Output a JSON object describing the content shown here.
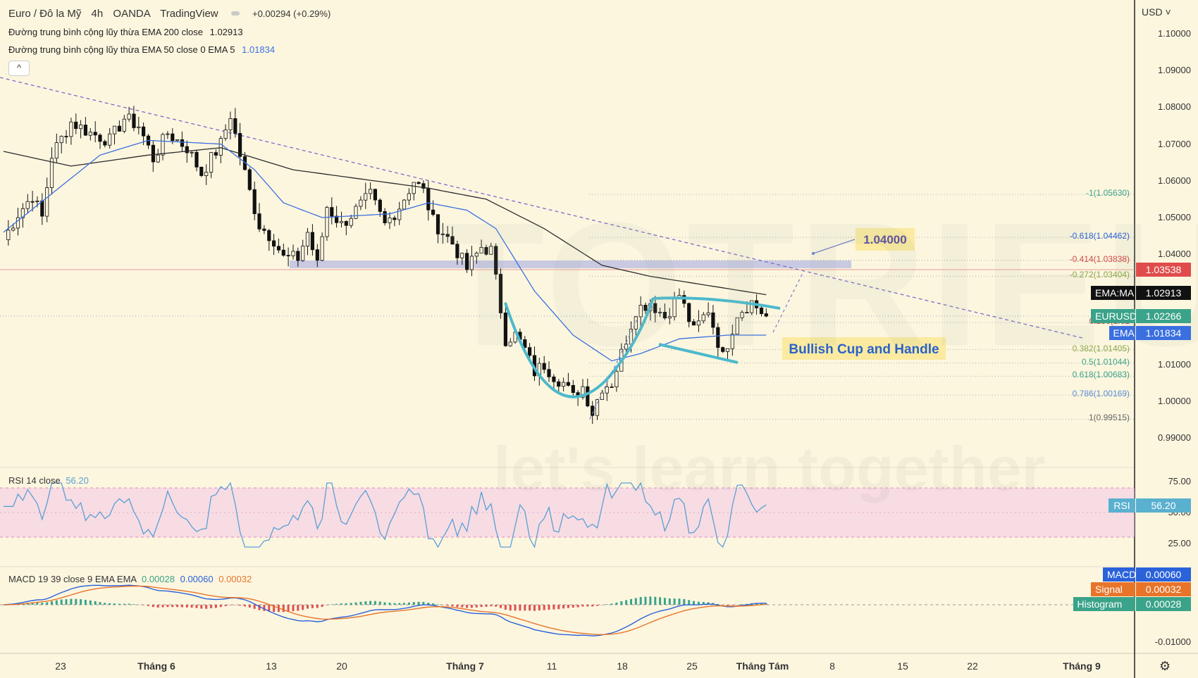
{
  "header": {
    "symbol": "Euro / Đô la Mỹ",
    "interval": "4h",
    "broker": "OANDA",
    "platform": "TradingView",
    "change": "+0.00294 (+0.29%)",
    "ema200_label": "Đường trung bình cộng lũy thừa EMA 200 close",
    "ema200_value": "1.02913",
    "ema50_label": "Đường trung bình cộng lũy thừa EMA 50 close 0 EMA 5",
    "ema50_value": "1.01834",
    "collapse_icon": "^"
  },
  "currency_menu": "USD ˅",
  "price_axis": [
    "1.10000",
    "1.09000",
    "1.08000",
    "1.07000",
    "1.06000",
    "1.05000",
    "1.04000",
    "1.01000",
    "1.00000",
    "0.99000"
  ],
  "price_tags": [
    {
      "label": "",
      "value": "1.03538",
      "color": "#e04c4c"
    },
    {
      "label": "EMA:MA",
      "value": "1.02913",
      "color": "#111111"
    },
    {
      "label": "EURUSD",
      "value": "1.02266",
      "color": "#3aa38a"
    },
    {
      "label": "EMA",
      "value": "1.01834",
      "color": "#3a6fe0"
    }
  ],
  "fib_labels": [
    "-1(1.05630)",
    "-0.618(1.04462)",
    "-0.414(1.03838)",
    "-0.272(1.03404)",
    "0.236(1.02",
    "0.382(1.01405)",
    "0.5(1.01044)",
    "0.618(1.00683)",
    "0.786(1.00169)",
    "1(0.99515)"
  ],
  "annotations": {
    "target": "1.04000",
    "pattern": "Bullish Cup and Handle"
  },
  "watermark": {
    "brand": "TOTRIEU",
    "slogan": "let's learn together"
  },
  "rsi": {
    "label": "RSI 14 close",
    "value": "56.20",
    "tag": "RSI",
    "axis": [
      "75.00",
      "50.00",
      "25.00"
    ]
  },
  "macd": {
    "label": "MACD 19 39 close 9 EMA EMA",
    "v1": "0.00028",
    "v2": "0.00060",
    "v3": "0.00032",
    "tags": [
      {
        "label": "MACD",
        "value": "0.00060",
        "color": "#2a62d9"
      },
      {
        "label": "Signal",
        "value": "0.00032",
        "color": "#e8742a"
      },
      {
        "label": "Histogram",
        "value": "0.00028",
        "color": "#3aa38a"
      }
    ],
    "axis": [
      "-0.01000"
    ]
  },
  "time_axis": [
    "23",
    "Tháng 6",
    "13",
    "20",
    "Tháng 7",
    "11",
    "18",
    "25",
    "Tháng Tám",
    "8",
    "15",
    "22",
    "Tháng 9"
  ],
  "settings_icon": "gear-icon",
  "chart_data": {
    "type": "candlestick",
    "symbol": "EURUSD",
    "interval": "4h",
    "ylim": [
      0.985,
      1.105
    ],
    "price_waypoints": [
      [
        0,
        1.044
      ],
      [
        3,
        1.051
      ],
      [
        6,
        1.056
      ],
      [
        8,
        1.05
      ],
      [
        10,
        1.067
      ],
      [
        14,
        1.076
      ],
      [
        18,
        1.073
      ],
      [
        22,
        1.071
      ],
      [
        25,
        1.077
      ],
      [
        28,
        1.075
      ],
      [
        31,
        1.066
      ],
      [
        34,
        1.073
      ],
      [
        38,
        1.069
      ],
      [
        41,
        1.062
      ],
      [
        45,
        1.07
      ],
      [
        47,
        1.078
      ],
      [
        49,
        1.067
      ],
      [
        51,
        1.057
      ],
      [
        53,
        1.048
      ],
      [
        56,
        1.044
      ],
      [
        58,
        1.039
      ],
      [
        61,
        1.039
      ],
      [
        63,
        1.046
      ],
      [
        65,
        1.037
      ],
      [
        67,
        1.053
      ],
      [
        70,
        1.048
      ],
      [
        73,
        1.052
      ],
      [
        76,
        1.056
      ],
      [
        79,
        1.048
      ],
      [
        82,
        1.053
      ],
      [
        85,
        1.06
      ],
      [
        87,
        1.057
      ],
      [
        89,
        1.049
      ],
      [
        91,
        1.046
      ],
      [
        93,
        1.043
      ],
      [
        96,
        1.036
      ],
      [
        99,
        1.042
      ],
      [
        101,
        1.041
      ],
      [
        104,
        1.017
      ],
      [
        106,
        1.018
      ],
      [
        108,
        1.014
      ],
      [
        110,
        1.008
      ],
      [
        112,
        1.01
      ],
      [
        114,
        1.007
      ],
      [
        116,
        1.005
      ],
      [
        118,
        1.001
      ],
      [
        120,
        1.004
      ],
      [
        122,
        0.997
      ],
      [
        124,
        1.004
      ],
      [
        126,
        1.005
      ],
      [
        128,
        1.013
      ],
      [
        131,
        1.025
      ],
      [
        134,
        1.027
      ],
      [
        137,
        1.023
      ],
      [
        140,
        1.029
      ],
      [
        143,
        1.019
      ],
      [
        146,
        1.025
      ],
      [
        149,
        1.012
      ],
      [
        152,
        1.024
      ],
      [
        155,
        1.027
      ],
      [
        158,
        1.023
      ]
    ],
    "ema50_waypoints": [
      [
        0,
        1.046
      ],
      [
        20,
        1.067
      ],
      [
        30,
        1.071
      ],
      [
        45,
        1.07
      ],
      [
        52,
        1.063
      ],
      [
        58,
        1.054
      ],
      [
        66,
        1.05
      ],
      [
        80,
        1.051
      ],
      [
        88,
        1.054
      ],
      [
        96,
        1.052
      ],
      [
        102,
        1.047
      ],
      [
        110,
        1.03
      ],
      [
        118,
        1.018
      ],
      [
        126,
        1.011
      ],
      [
        132,
        1.013
      ],
      [
        140,
        1.017
      ],
      [
        150,
        1.018
      ],
      [
        158,
        1.018
      ]
    ],
    "ema200_waypoints": [
      [
        0,
        1.068
      ],
      [
        14,
        1.064
      ],
      [
        30,
        1.067
      ],
      [
        45,
        1.069
      ],
      [
        60,
        1.063
      ],
      [
        88,
        1.058
      ],
      [
        100,
        1.055
      ],
      [
        112,
        1.047
      ],
      [
        124,
        1.037
      ],
      [
        134,
        1.034
      ],
      [
        158,
        1.029
      ]
    ],
    "total_bars": 158,
    "fib_levels": [
      {
        "ratio": -1,
        "price": 1.0563
      },
      {
        "ratio": -0.618,
        "price": 1.04462
      },
      {
        "ratio": -0.414,
        "price": 1.03838
      },
      {
        "ratio": -0.272,
        "price": 1.03404
      },
      {
        "ratio": 0.236,
        "price": 1.0214
      },
      {
        "ratio": 0.382,
        "price": 1.01405
      },
      {
        "ratio": 0.5,
        "price": 1.01044
      },
      {
        "ratio": 0.618,
        "price": 1.00683
      },
      {
        "ratio": 0.786,
        "price": 1.00169
      },
      {
        "ratio": 1,
        "price": 0.99515
      }
    ],
    "horizontal_line": 1.03538,
    "current_price": 1.02266,
    "ema200_last": 1.02913,
    "ema50_last": 1.01834,
    "rsi_range": [
      0,
      100
    ],
    "rsi_last": 56.2,
    "rsi_band": [
      30,
      70
    ],
    "macd_last": 0.0006,
    "signal_last": 0.00032,
    "histogram_last": 0.00028
  }
}
